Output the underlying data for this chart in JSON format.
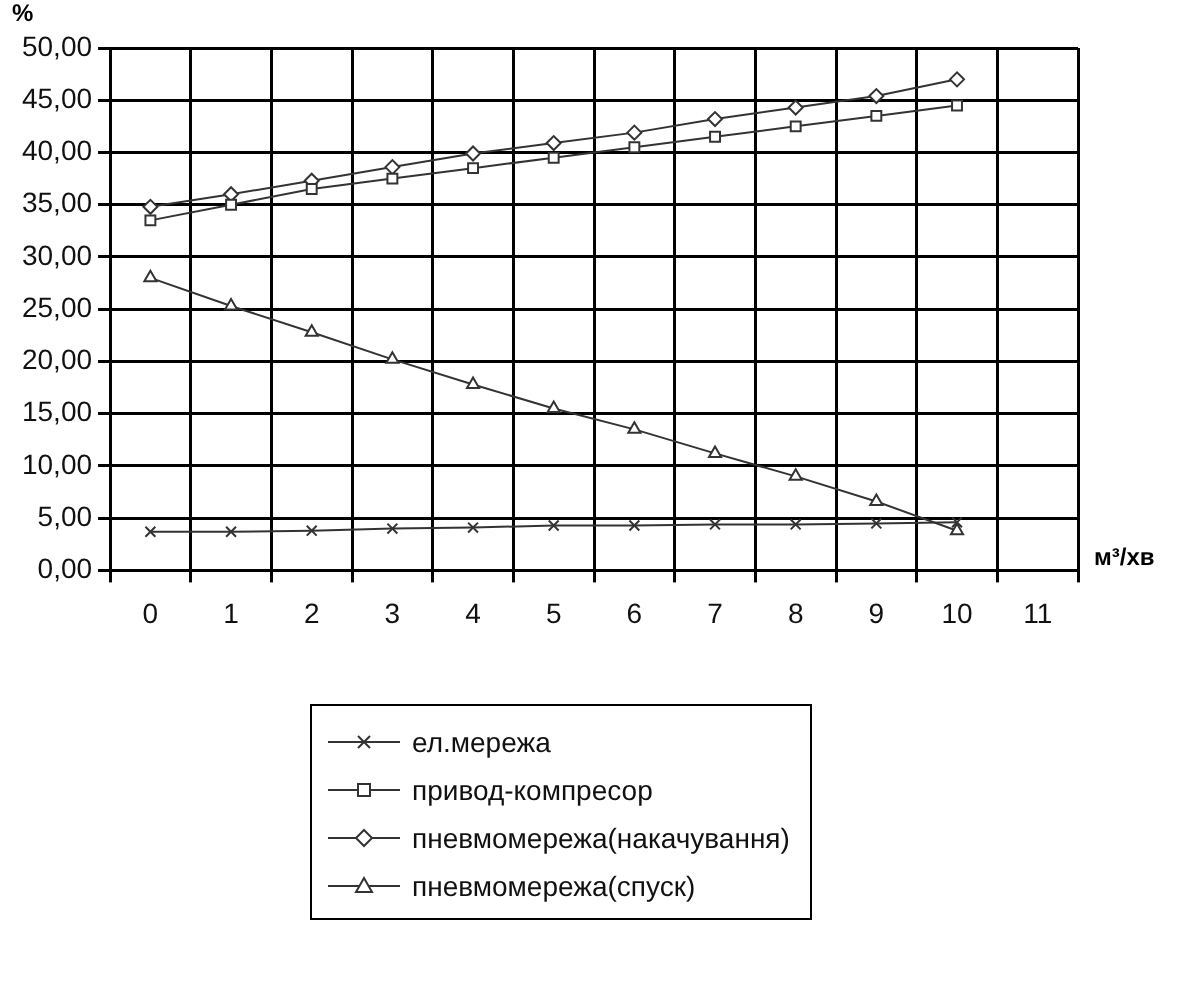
{
  "chart_data": {
    "type": "line",
    "ylabel": "%",
    "xlabel": "м³/хв",
    "categories": [
      "0",
      "1",
      "2",
      "3",
      "4",
      "5",
      "6",
      "7",
      "8",
      "9",
      "10",
      "11"
    ],
    "series": [
      {
        "name": "ел.мережа",
        "color": "#333333",
        "marker": "cross",
        "values": [
          3.7,
          3.7,
          3.8,
          4.0,
          4.1,
          4.3,
          4.3,
          4.4,
          4.4,
          4.5,
          4.6,
          null
        ]
      },
      {
        "name": "привод-компресор",
        "color": "#333333",
        "marker": "square",
        "values": [
          33.5,
          35.0,
          36.5,
          37.5,
          38.5,
          39.5,
          40.5,
          41.5,
          42.5,
          43.5,
          44.5,
          null
        ]
      },
      {
        "name": "пневмомережа(накачування)",
        "color": "#333333",
        "marker": "diamond",
        "values": [
          34.8,
          36.0,
          37.3,
          38.6,
          39.9,
          40.9,
          41.9,
          43.2,
          44.3,
          45.4,
          47.0,
          null
        ]
      },
      {
        "name": "пневмомережа(спуск)",
        "color": "#333333",
        "marker": "triangle",
        "values": [
          28.0,
          25.3,
          22.8,
          20.2,
          17.8,
          15.5,
          13.5,
          11.2,
          9.0,
          6.6,
          3.8,
          null
        ]
      }
    ],
    "ylim": [
      0,
      50
    ],
    "yticks": [
      {
        "value": 0,
        "label": "0,00"
      },
      {
        "value": 5,
        "label": "5,00"
      },
      {
        "value": 10,
        "label": "10,00"
      },
      {
        "value": 15,
        "label": "15,00"
      },
      {
        "value": 20,
        "label": "20,00"
      },
      {
        "value": 25,
        "label": "25,00"
      },
      {
        "value": 30,
        "label": "30,00"
      },
      {
        "value": 35,
        "label": "35,00"
      },
      {
        "value": 40,
        "label": "40,00"
      },
      {
        "value": 45,
        "label": "45,00"
      },
      {
        "value": 50,
        "label": "50,00"
      }
    ],
    "grid": true,
    "legend": "bottom"
  }
}
